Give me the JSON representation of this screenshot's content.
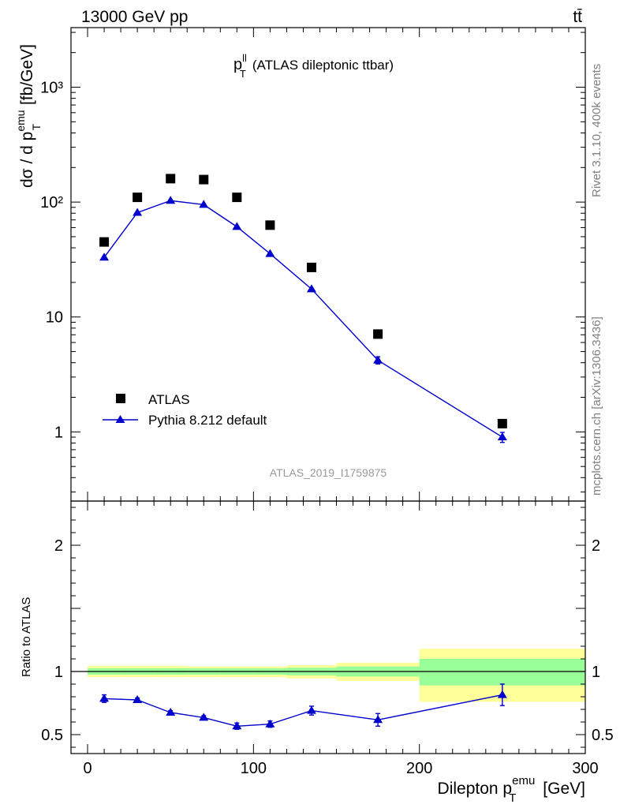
{
  "header": {
    "energy_label": "13000 GeV pp",
    "process_label": "tt̄"
  },
  "side_labels": {
    "rivet": "Rivet 3.1.10,  400k events",
    "mcplots": "mcplots.cern.ch [arXiv:1306.3436]"
  },
  "chart_data": [
    {
      "type": "scatter",
      "panel": "main",
      "title_main": "p",
      "title_sup": "ll",
      "title_sub": "T",
      "title_rest": "(ATLAS dileptonic ttbar)",
      "analysis_tag": "ATLAS_2019_I1759875",
      "ylabel_parts": {
        "a": "dσ / d p",
        "sup": "emu",
        "sub": "T",
        "b": " [fb/GeV]"
      },
      "yscale": "log",
      "ylim": [
        0.25,
        3300
      ],
      "xlim": [
        -10,
        300
      ],
      "yticks": [
        {
          "value": 1,
          "label": "1"
        },
        {
          "value": 10,
          "label": "10"
        },
        {
          "value": 100,
          "label": "10²"
        },
        {
          "value": 1000,
          "label": "10³"
        }
      ],
      "legend": {
        "placement": "bottom-left",
        "entries": [
          {
            "label": "ATLAS",
            "marker": "square",
            "color": "#000000"
          },
          {
            "label": "Pythia 8.212 default",
            "marker": "triangle-line",
            "color": "#0000cc"
          }
        ]
      },
      "series": [
        {
          "name": "ATLAS",
          "color": "#000000",
          "x": [
            10,
            30,
            50,
            70,
            90,
            110,
            135,
            175,
            250
          ],
          "values": [
            45,
            110,
            160,
            157,
            110,
            63,
            27,
            7.1,
            1.18
          ]
        },
        {
          "name": "Pythia 8.212 default",
          "color": "#0000cc",
          "x": [
            10,
            30,
            50,
            70,
            90,
            110,
            135,
            175,
            250
          ],
          "values": [
            33,
            81,
            103,
            95,
            61,
            35.5,
            17.5,
            4.2,
            0.9
          ],
          "err_low": [
            0,
            0,
            0,
            0,
            0,
            0,
            0,
            0.3,
            0.09
          ],
          "err_high": [
            0,
            0,
            0,
            0,
            0,
            0,
            0,
            0.3,
            0.09
          ]
        }
      ]
    },
    {
      "type": "line",
      "panel": "ratio",
      "ylabel": "Ratio to ATLAS",
      "xlabel_parts": {
        "a": "Dilepton p",
        "sup": "emu",
        "sub": "T",
        "b": " [GeV]"
      },
      "ylim": [
        0.35,
        2.35
      ],
      "xlim": [
        -10,
        300
      ],
      "yticks": [
        {
          "value": 0.5,
          "label": "0.5"
        },
        {
          "value": 1,
          "label": "1"
        },
        {
          "value": 2,
          "label": "2"
        }
      ],
      "xticks": [
        {
          "value": 0,
          "label": "0"
        },
        {
          "value": 100,
          "label": "100"
        },
        {
          "value": 200,
          "label": "200"
        },
        {
          "value": 300,
          "label": "300"
        }
      ],
      "reference_line": 1,
      "bands": [
        {
          "x_lo": 0,
          "x_hi": 20,
          "stat": [
            0.975,
            1.025
          ],
          "total": [
            0.955,
            1.045
          ]
        },
        {
          "x_lo": 20,
          "x_hi": 40,
          "stat": [
            0.975,
            1.025
          ],
          "total": [
            0.955,
            1.045
          ]
        },
        {
          "x_lo": 40,
          "x_hi": 60,
          "stat": [
            0.975,
            1.025
          ],
          "total": [
            0.955,
            1.045
          ]
        },
        {
          "x_lo": 60,
          "x_hi": 80,
          "stat": [
            0.975,
            1.025
          ],
          "total": [
            0.955,
            1.04
          ]
        },
        {
          "x_lo": 80,
          "x_hi": 100,
          "stat": [
            0.975,
            1.025
          ],
          "total": [
            0.955,
            1.04
          ]
        },
        {
          "x_lo": 100,
          "x_hi": 120,
          "stat": [
            0.975,
            1.025
          ],
          "total": [
            0.955,
            1.04
          ]
        },
        {
          "x_lo": 120,
          "x_hi": 150,
          "stat": [
            0.97,
            1.03
          ],
          "total": [
            0.945,
            1.05
          ]
        },
        {
          "x_lo": 150,
          "x_hi": 200,
          "stat": [
            0.96,
            1.04
          ],
          "total": [
            0.925,
            1.07
          ]
        },
        {
          "x_lo": 200,
          "x_hi": 300,
          "stat": [
            0.89,
            1.1
          ],
          "total": [
            0.76,
            1.18
          ]
        }
      ],
      "band_colors": {
        "stat": "#99ff99",
        "total": "#ffff99"
      },
      "series": [
        {
          "name": "Pythia 8.212 default",
          "color": "#0000cc",
          "x": [
            10,
            30,
            50,
            70,
            90,
            110,
            135,
            175,
            250
          ],
          "values": [
            0.785,
            0.775,
            0.675,
            0.635,
            0.567,
            0.583,
            0.69,
            0.617,
            0.815
          ],
          "err_low": [
            0.03,
            0.015,
            0.015,
            0.015,
            0.025,
            0.025,
            0.035,
            0.05,
            0.085
          ],
          "err_high": [
            0.03,
            0.015,
            0.015,
            0.015,
            0.025,
            0.025,
            0.035,
            0.05,
            0.085
          ]
        }
      ]
    }
  ]
}
